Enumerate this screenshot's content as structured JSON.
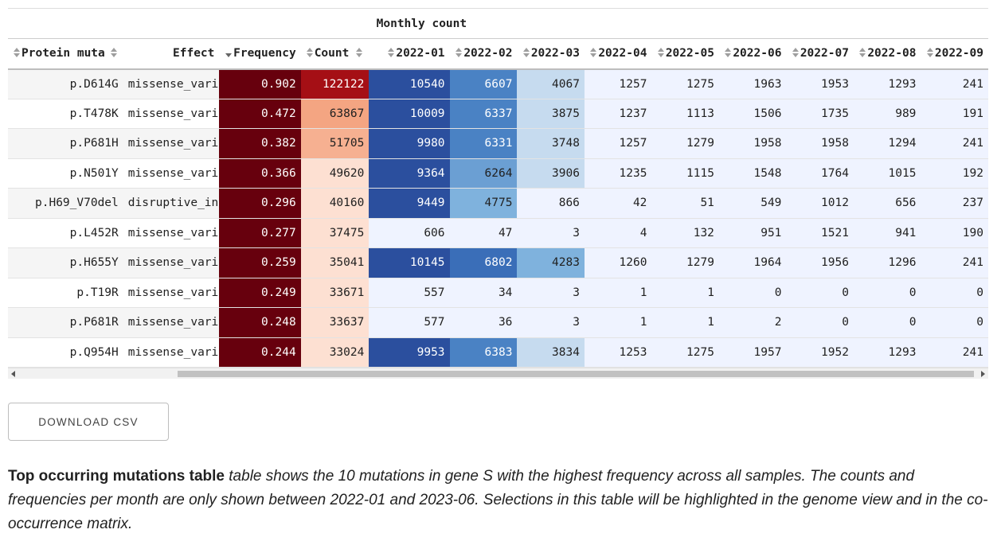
{
  "table": {
    "group_header": "Monthly count",
    "columns": [
      "Protein muta",
      "Effect",
      "Frequency",
      "Count",
      "2022-01",
      "2022-02",
      "2022-03",
      "2022-04",
      "2022-05",
      "2022-06",
      "2022-07",
      "2022-08",
      "2022-09"
    ],
    "rows": [
      {
        "mutation": "p.D614G",
        "effect": "missense_vari",
        "frequency": "0.902",
        "count": "122122",
        "months": [
          "10540",
          "6607",
          "4067",
          "1257",
          "1275",
          "1963",
          "1953",
          "1293",
          "241"
        ]
      },
      {
        "mutation": "p.T478K",
        "effect": "missense_vari",
        "frequency": "0.472",
        "count": "63867",
        "months": [
          "10009",
          "6337",
          "3875",
          "1237",
          "1113",
          "1506",
          "1735",
          "989",
          "191"
        ]
      },
      {
        "mutation": "p.P681H",
        "effect": "missense_vari",
        "frequency": "0.382",
        "count": "51705",
        "months": [
          "9980",
          "6331",
          "3748",
          "1257",
          "1279",
          "1958",
          "1958",
          "1294",
          "241"
        ]
      },
      {
        "mutation": "p.N501Y",
        "effect": "missense_vari",
        "frequency": "0.366",
        "count": "49620",
        "months": [
          "9364",
          "6264",
          "3906",
          "1235",
          "1115",
          "1548",
          "1764",
          "1015",
          "192"
        ]
      },
      {
        "mutation": "p.H69_V70del",
        "effect": "disruptive_in",
        "frequency": "0.296",
        "count": "40160",
        "months": [
          "9449",
          "4775",
          "866",
          "42",
          "51",
          "549",
          "1012",
          "656",
          "237"
        ]
      },
      {
        "mutation": "p.L452R",
        "effect": "missense_vari",
        "frequency": "0.277",
        "count": "37475",
        "months": [
          "606",
          "47",
          "3",
          "4",
          "132",
          "951",
          "1521",
          "941",
          "190"
        ]
      },
      {
        "mutation": "p.H655Y",
        "effect": "missense_vari",
        "frequency": "0.259",
        "count": "35041",
        "months": [
          "10145",
          "6802",
          "4283",
          "1260",
          "1279",
          "1964",
          "1956",
          "1296",
          "241"
        ]
      },
      {
        "mutation": "p.T19R",
        "effect": "missense_vari",
        "frequency": "0.249",
        "count": "33671",
        "months": [
          "557",
          "34",
          "3",
          "1",
          "1",
          "0",
          "0",
          "0",
          "0"
        ]
      },
      {
        "mutation": "p.P681R",
        "effect": "missense_vari",
        "frequency": "0.248",
        "count": "33637",
        "months": [
          "577",
          "36",
          "3",
          "1",
          "1",
          "2",
          "0",
          "0",
          "0"
        ]
      },
      {
        "mutation": "p.Q954H",
        "effect": "missense_vari",
        "frequency": "0.244",
        "count": "33024",
        "months": [
          "9953",
          "6383",
          "3834",
          "1253",
          "1275",
          "1957",
          "1952",
          "1293",
          "241"
        ]
      }
    ]
  },
  "colors": {
    "frequency_bg": "#67000d",
    "count_scale": [
      "#fee0d2",
      "#fcbba1",
      "#fc9272",
      "#a50f15"
    ],
    "month_scale_low": "#eff3ff",
    "month_scale_mid": "#c6dbef",
    "month_scale_high": "#2b4f9e"
  },
  "download_button": "DOWNLOAD CSV",
  "caption": {
    "title": "Top occurring mutations table",
    "text": " table shows the 10 mutations in gene S with the highest frequency across all samples. The counts and frequencies per month are only shown between 2022-01 and 2023-06. Selections in this table will be highlighted in the genome view and in the co-occurrence matrix."
  }
}
